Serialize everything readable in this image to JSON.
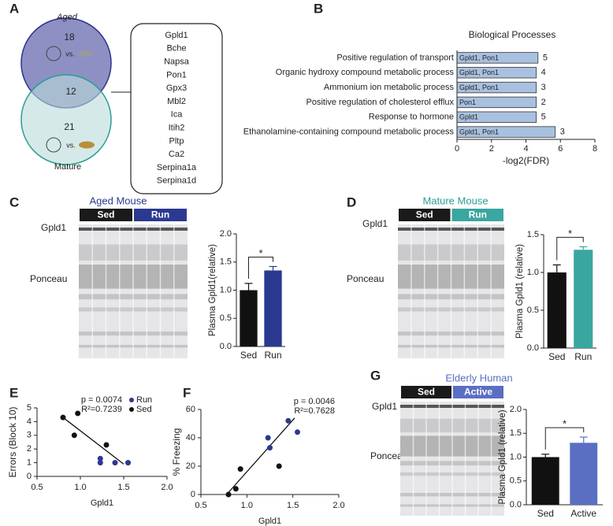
{
  "panel_labels": [
    "A",
    "B",
    "C",
    "D",
    "E",
    "F",
    "G"
  ],
  "venn": {
    "top_label": "Aged",
    "bottom_label": "Mature",
    "top_only": 18,
    "overlap": 12,
    "bottom_only": 21,
    "vs_top": "vs.",
    "vs_bottom": "vs.",
    "genes": [
      "Gpld1",
      "Bche",
      "Napsa",
      "Pon1",
      "Gpx3",
      "Mbl2",
      "Ica",
      "Itih2",
      "Pltp",
      "Ca2",
      "Serpina1a",
      "Serpina1d"
    ]
  },
  "blots": [
    {
      "title": "Aged Mouse",
      "title_color": "#2b3990",
      "groups": [
        "Sed",
        "Run"
      ],
      "group_colors": [
        "#1a1a1a",
        "#2b3990"
      ],
      "rows": [
        "Gpld1",
        "Ponceau"
      ]
    },
    {
      "title": "Mature Mouse",
      "title_color": "#2a9d94",
      "groups": [
        "Sed",
        "Run"
      ],
      "group_colors": [
        "#1a1a1a",
        "#3aa6a0"
      ],
      "rows": [
        "Gpld1",
        "Ponceau"
      ]
    },
    {
      "title": "Elderly Human",
      "title_color": "#5b6fc2",
      "groups": [
        "Sed",
        "Active"
      ],
      "group_colors": [
        "#1a1a1a",
        "#5b6fc2"
      ],
      "rows": [
        "Gpld1",
        "Ponceau"
      ]
    }
  ],
  "chart_data": [
    {
      "type": "hbar",
      "title": "Biological Processes",
      "categories": [
        "Positive regulation of transport",
        "Organic hydroxy compound metabolic process",
        "Ammonium ion metabolic process",
        "Positive regulation of cholesterol efflux",
        "Response to hormone",
        "Ethanolamine-containing compound metabolic process"
      ],
      "values": [
        4.7,
        4.6,
        4.6,
        4.6,
        4.6,
        5.7
      ],
      "bar_labels": [
        "Gpld1, Pon1",
        "Gpld1, Pon1",
        "Gpld1, Pon1",
        "Pon1",
        "Gpld1",
        "Gpld1, Pon1"
      ],
      "counts": [
        5,
        4,
        3,
        2,
        5,
        3
      ],
      "color": "#a9c1e0",
      "xlim": [
        0,
        8
      ],
      "xticks": [
        0,
        2,
        4,
        6,
        8
      ],
      "xlabel": "-log2(FDR)"
    },
    {
      "type": "bar",
      "categories": [
        "Sed",
        "Run"
      ],
      "values": [
        1.0,
        1.35
      ],
      "errors": [
        0.12,
        0.07
      ],
      "colors": [
        "#111111",
        "#2b3990"
      ],
      "ylim": [
        0,
        2
      ],
      "yticks": [
        {
          "value": 0,
          "label": "0.0"
        },
        {
          "value": 0.5,
          "label": "0.5"
        },
        {
          "value": 1,
          "label": "1.0"
        },
        {
          "value": 1.5,
          "label": "1.5"
        },
        {
          "value": 2,
          "label": "2.0"
        }
      ],
      "ylabel": "Plasma Gpld1(relative)",
      "annotation": "*"
    },
    {
      "type": "bar",
      "categories": [
        "Sed",
        "Run"
      ],
      "values": [
        1.0,
        1.3
      ],
      "errors": [
        0.1,
        0.04
      ],
      "colors": [
        "#111111",
        "#3aa6a0"
      ],
      "ylim": [
        0,
        1.5
      ],
      "yticks": [
        {
          "value": 0,
          "label": "0.0"
        },
        {
          "value": 0.5,
          "label": "0.5"
        },
        {
          "value": 1,
          "label": "1.0"
        },
        {
          "value": 1.5,
          "label": "1.5"
        }
      ],
      "ylabel": "Plasma Gpld1 (relative)",
      "annotation": "*"
    },
    {
      "type": "scatter",
      "series": [
        {
          "name": "Run",
          "color": "#2b3990",
          "x": [
            1.23,
            1.23,
            1.4,
            1.55
          ],
          "y": [
            1.3,
            1.0,
            1.0,
            1.0
          ]
        },
        {
          "name": "Sed",
          "color": "#111111",
          "x": [
            0.8,
            0.97,
            0.93,
            1.3
          ],
          "y": [
            4.3,
            4.6,
            3.0,
            2.3
          ]
        }
      ],
      "fit": {
        "x": [
          0.8,
          1.5
        ],
        "y": [
          4.3,
          0.9
        ]
      },
      "annotations": [
        "p = 0.0074",
        "R²=0.7239"
      ],
      "xlim": [
        0.5,
        2
      ],
      "xticks": [
        {
          "value": 0.5,
          "label": "0.5"
        },
        {
          "value": 1,
          "label": "1.0"
        },
        {
          "value": 1.5,
          "label": "1.5"
        },
        {
          "value": 2,
          "label": "2.0"
        }
      ],
      "ylim": [
        0,
        5
      ],
      "yticks": [
        0,
        1,
        2,
        3,
        4,
        5
      ],
      "xlabel": "Gpld1",
      "ylabel": "Errors (Block 10)",
      "legend": true
    },
    {
      "type": "scatter",
      "series": [
        {
          "color": "#2b3990",
          "x": [
            1.23,
            1.25,
            1.45,
            1.55
          ],
          "y": [
            40,
            33,
            52,
            44
          ]
        },
        {
          "color": "#111111",
          "x": [
            0.8,
            0.88,
            0.93,
            1.35
          ],
          "y": [
            0,
            4,
            18,
            20
          ]
        }
      ],
      "fit": {
        "x": [
          0.78,
          1.52
        ],
        "y": [
          0,
          54
        ]
      },
      "annotations": [
        "p = 0.0046",
        "R²=0.7628"
      ],
      "xlim": [
        0.5,
        2
      ],
      "xticks": [
        {
          "value": 0.5,
          "label": "0.5"
        },
        {
          "value": 1,
          "label": "1.0"
        },
        {
          "value": 1.5,
          "label": "1.5"
        },
        {
          "value": 2,
          "label": "2.0"
        }
      ],
      "ylim": [
        0,
        60
      ],
      "yticks": [
        0,
        20,
        40,
        60
      ],
      "xlabel": "Gpld1",
      "ylabel": "% Freezing",
      "legend": false
    },
    {
      "type": "bar",
      "categories": [
        "Sed",
        "Active"
      ],
      "values": [
        1.0,
        1.3
      ],
      "errors": [
        0.06,
        0.12
      ],
      "colors": [
        "#111111",
        "#5b6fc2"
      ],
      "ylim": [
        0,
        2
      ],
      "yticks": [
        {
          "value": 0,
          "label": "0.0"
        },
        {
          "value": 0.5,
          "label": "0.5"
        },
        {
          "value": 1,
          "label": "1.0"
        },
        {
          "value": 1.5,
          "label": "1.5"
        },
        {
          "value": 2,
          "label": "2.0"
        }
      ],
      "ylabel": "Plasma Gpld1 (relative)",
      "annotation": "*"
    }
  ]
}
